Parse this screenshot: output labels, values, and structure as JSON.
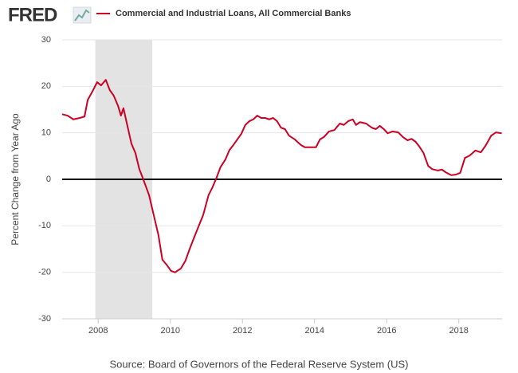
{
  "logo": "FRED",
  "chart_data": {
    "type": "line",
    "y_label": "Percent Change from Year Ago",
    "source": "Source: Board of Governors of the Federal Reserve System (US)",
    "recession": [
      2007.92,
      2009.5
    ],
    "recession_color": "#e3e3e3",
    "grid": true,
    "zero_line": true,
    "xlim": [
      2007,
      2019.2
    ],
    "xticks": [
      2008,
      2010,
      2012,
      2014,
      2016,
      2018
    ],
    "ylim": [
      -30,
      30
    ],
    "yticks": [
      30,
      20,
      10,
      0,
      -10,
      -20,
      -30
    ],
    "x": [
      2007.0,
      2007.15,
      2007.31,
      2007.49,
      2007.62,
      2007.71,
      2007.84,
      2007.97,
      2008.08,
      2008.21,
      2008.32,
      2008.43,
      2008.55,
      2008.63,
      2008.7,
      2008.81,
      2008.92,
      2009.03,
      2009.14,
      2009.25,
      2009.41,
      2009.54,
      2009.67,
      2009.78,
      2009.91,
      2010.02,
      2010.13,
      2010.29,
      2010.42,
      2010.53,
      2010.64,
      2010.8,
      2010.91,
      2011.06,
      2011.17,
      2011.28,
      2011.39,
      2011.53,
      2011.64,
      2011.75,
      2011.86,
      2011.97,
      2012.08,
      2012.19,
      2012.3,
      2012.41,
      2012.52,
      2012.63,
      2012.74,
      2012.85,
      2012.96,
      2013.07,
      2013.18,
      2013.29,
      2013.45,
      2013.62,
      2013.73,
      2013.89,
      2014.04,
      2014.15,
      2014.26,
      2014.4,
      2014.55,
      2014.7,
      2014.81,
      2014.93,
      2015.06,
      2015.15,
      2015.26,
      2015.43,
      2015.59,
      2015.7,
      2015.81,
      2015.92,
      2016.03,
      2016.16,
      2016.32,
      2016.45,
      2016.58,
      2016.69,
      2016.8,
      2016.91,
      2017.02,
      2017.15,
      2017.26,
      2017.42,
      2017.53,
      2017.64,
      2017.79,
      2017.91,
      2018.04,
      2018.17,
      2018.3,
      2018.46,
      2018.61,
      2018.74,
      2018.9,
      2019.03,
      2019.19
    ],
    "series": [
      {
        "name": "Commercial and Industrial Loans, All Commercial Banks",
        "color": "#cc0022",
        "values": [
          14.0,
          13.7,
          12.9,
          13.2,
          13.5,
          17.1,
          18.9,
          20.9,
          20.2,
          21.4,
          19.2,
          18.0,
          15.8,
          13.7,
          15.3,
          11.5,
          7.7,
          5.7,
          2.2,
          0,
          -3.4,
          -7.7,
          -12,
          -17.3,
          -18.5,
          -19.7,
          -20,
          -19.2,
          -17.5,
          -15.1,
          -12.9,
          -9.8,
          -7.7,
          -3.4,
          -1.7,
          0.3,
          2.6,
          4.3,
          6.3,
          7.4,
          8.6,
          9.8,
          11.7,
          12.5,
          12.9,
          13.7,
          13.2,
          13.2,
          12.9,
          13.2,
          12.5,
          11.1,
          10.8,
          9.4,
          8.6,
          7.4,
          6.9,
          6.9,
          6.9,
          8.6,
          9.1,
          10.3,
          10.6,
          12.0,
          11.7,
          12.5,
          12.9,
          11.7,
          12.3,
          12.0,
          11.1,
          10.8,
          11.5,
          10.8,
          9.9,
          10.3,
          10.1,
          9.1,
          8.4,
          8.7,
          8.1,
          7.0,
          5.7,
          2.9,
          2.2,
          1.9,
          2.1,
          1.5,
          0.9,
          1.0,
          1.4,
          4.6,
          5.1,
          6.2,
          5.8,
          7.2,
          9.4,
          10.1,
          9.9
        ]
      }
    ]
  }
}
